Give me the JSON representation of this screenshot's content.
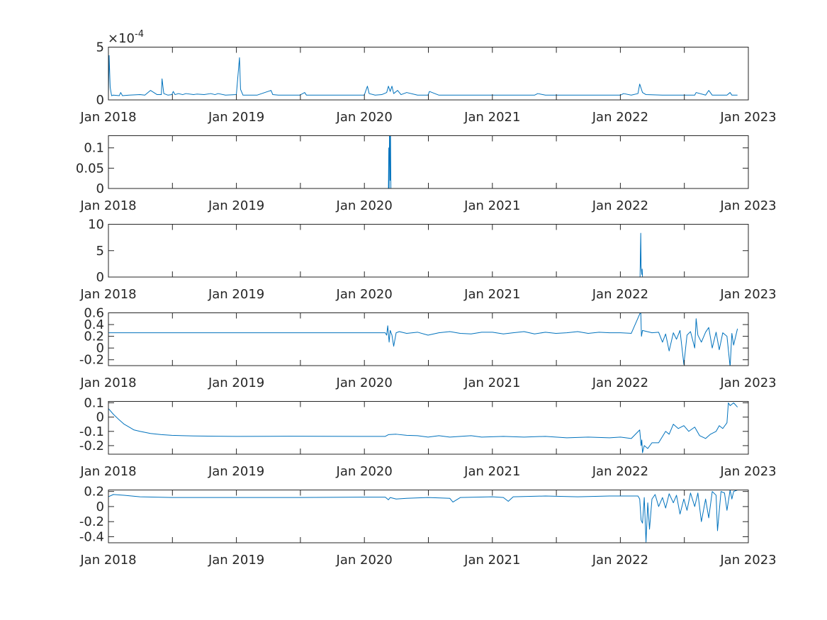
{
  "chart_data": [
    {
      "type": "line",
      "exponent_label": "×10^-4",
      "exponent_base": "×10",
      "exponent_power": "-4",
      "xlim": [
        "2018-01-01",
        "2023-01-01"
      ],
      "ylim": [
        0,
        5
      ],
      "yticks": [
        0,
        5
      ],
      "ytick_labels": [
        "0",
        "5"
      ],
      "xtick_labels": [
        "Jan 2018",
        "Jan 2019",
        "Jan 2020",
        "Jan 2021",
        "Jan 2022",
        "Jan 2023"
      ],
      "series": [
        {
          "color": "#0072BD",
          "x": [
            "2018-01-01",
            "2018-01-03",
            "2018-01-06",
            "2018-01-10",
            "2018-01-15",
            "2018-02-01",
            "2018-02-05",
            "2018-02-10",
            "2018-03-01",
            "2018-04-01",
            "2018-04-15",
            "2018-05-01",
            "2018-05-20",
            "2018-06-01",
            "2018-06-03",
            "2018-06-08",
            "2018-06-20",
            "2018-07-01",
            "2018-07-05",
            "2018-07-10",
            "2018-07-20",
            "2018-08-01",
            "2018-08-10",
            "2018-09-01",
            "2018-09-10",
            "2018-10-01",
            "2018-10-20",
            "2018-11-01",
            "2018-11-10",
            "2018-12-01",
            "2019-01-01",
            "2019-01-10",
            "2019-01-13",
            "2019-01-20",
            "2019-02-01",
            "2019-03-01",
            "2019-04-10",
            "2019-04-15",
            "2019-05-01",
            "2019-06-01",
            "2019-07-01",
            "2019-07-15",
            "2019-07-20",
            "2019-09-01",
            "2019-10-01",
            "2019-11-01",
            "2019-12-01",
            "2020-01-01",
            "2020-01-10",
            "2020-01-15",
            "2020-02-01",
            "2020-02-20",
            "2020-03-05",
            "2020-03-10",
            "2020-03-15",
            "2020-03-20",
            "2020-03-25",
            "2020-04-05",
            "2020-04-15",
            "2020-05-01",
            "2020-06-01",
            "2020-07-01",
            "2020-07-05",
            "2020-08-01",
            "2020-09-01",
            "2020-10-01",
            "2020-11-01",
            "2020-12-01",
            "2021-01-01",
            "2021-02-01",
            "2021-03-01",
            "2021-04-01",
            "2021-05-01",
            "2021-05-10",
            "2021-06-01",
            "2021-08-01",
            "2021-10-01",
            "2021-12-01",
            "2022-01-01",
            "2022-01-10",
            "2022-02-01",
            "2022-02-20",
            "2022-02-25",
            "2022-03-05",
            "2022-03-15",
            "2022-05-01",
            "2022-07-01",
            "2022-08-01",
            "2022-08-05",
            "2022-09-01",
            "2022-09-10",
            "2022-09-20",
            "2022-10-01",
            "2022-10-15",
            "2022-11-01",
            "2022-11-10",
            "2022-11-15",
            "2022-12-01"
          ],
          "y": [
            0.5,
            4.2,
            1.2,
            0.4,
            0.45,
            0.4,
            0.7,
            0.4,
            0.45,
            0.5,
            0.45,
            0.9,
            0.5,
            0.5,
            2.0,
            0.6,
            0.45,
            0.5,
            0.8,
            0.5,
            0.6,
            0.5,
            0.6,
            0.5,
            0.55,
            0.5,
            0.6,
            0.5,
            0.6,
            0.45,
            0.5,
            4.0,
            1.0,
            0.45,
            0.45,
            0.45,
            0.9,
            0.5,
            0.45,
            0.45,
            0.45,
            0.7,
            0.45,
            0.45,
            0.45,
            0.45,
            0.45,
            0.45,
            1.3,
            0.6,
            0.45,
            0.5,
            0.7,
            1.3,
            0.8,
            1.3,
            0.6,
            0.9,
            0.5,
            0.7,
            0.45,
            0.45,
            0.8,
            0.45,
            0.45,
            0.45,
            0.45,
            0.45,
            0.45,
            0.45,
            0.45,
            0.45,
            0.45,
            0.6,
            0.45,
            0.45,
            0.45,
            0.45,
            0.45,
            0.6,
            0.45,
            0.6,
            1.5,
            0.7,
            0.5,
            0.45,
            0.45,
            0.45,
            0.7,
            0.45,
            0.9,
            0.45,
            0.45,
            0.45,
            0.45,
            0.7,
            0.45,
            0.45
          ]
        }
      ]
    },
    {
      "type": "line",
      "xlim": [
        "2018-01-01",
        "2023-01-01"
      ],
      "ylim": [
        0,
        0.13
      ],
      "yticks": [
        0,
        0.05,
        0.1
      ],
      "ytick_labels": [
        "0",
        "0.05",
        "0.1"
      ],
      "xtick_labels": [
        "Jan 2018",
        "Jan 2019",
        "Jan 2020",
        "Jan 2021",
        "Jan 2022",
        "Jan 2023"
      ],
      "series": [
        {
          "color": "#0072BD",
          "x": [
            "2018-01-01",
            "2020-03-10",
            "2020-03-11",
            "2020-03-12",
            "2020-03-13",
            "2020-03-14",
            "2020-03-15",
            "2020-03-16",
            "2020-03-17",
            "2022-12-01"
          ],
          "y": [
            0,
            0,
            0.1,
            0,
            0.13,
            0.13,
            0.02,
            0.13,
            0,
            0
          ]
        }
      ]
    },
    {
      "type": "line",
      "xlim": [
        "2018-01-01",
        "2023-01-01"
      ],
      "ylim": [
        0,
        10
      ],
      "yticks": [
        0,
        5,
        10
      ],
      "ytick_labels": [
        "0",
        "5",
        "10"
      ],
      "xtick_labels": [
        "Jan 2018",
        "Jan 2019",
        "Jan 2020",
        "Jan 2021",
        "Jan 2022",
        "Jan 2023"
      ],
      "series": [
        {
          "color": "#0072BD",
          "x": [
            "2018-01-01",
            "2022-02-26",
            "2022-02-28",
            "2022-03-01",
            "2022-03-03",
            "2022-03-04",
            "2022-03-05",
            "2022-12-01"
          ],
          "y": [
            0,
            0,
            8.3,
            2.0,
            0.5,
            1.5,
            0,
            0
          ]
        }
      ]
    },
    {
      "type": "line",
      "xlim": [
        "2018-01-01",
        "2023-01-01"
      ],
      "ylim": [
        -0.3,
        0.6
      ],
      "yticks": [
        -0.2,
        0,
        0.2,
        0.4,
        0.6
      ],
      "ytick_labels": [
        "-0.2",
        "0",
        "0.2",
        "0.4",
        "0.6"
      ],
      "xtick_labels": [
        "Jan 2018",
        "Jan 2019",
        "Jan 2020",
        "Jan 2021",
        "Jan 2022",
        "Jan 2023"
      ],
      "series": [
        {
          "color": "#0072BD",
          "x": [
            "2018-01-01",
            "2020-03-01",
            "2020-03-05",
            "2020-03-08",
            "2020-03-12",
            "2020-03-15",
            "2020-03-20",
            "2020-03-25",
            "2020-04-01",
            "2020-04-10",
            "2020-05-01",
            "2020-06-01",
            "2020-07-01",
            "2020-08-01",
            "2020-09-01",
            "2020-10-01",
            "2020-11-01",
            "2020-12-01",
            "2021-01-01",
            "2021-02-01",
            "2021-03-01",
            "2021-04-01",
            "2021-05-01",
            "2021-06-01",
            "2021-07-01",
            "2021-08-01",
            "2021-09-01",
            "2021-10-01",
            "2021-11-01",
            "2021-12-01",
            "2022-01-01",
            "2022-02-01",
            "2022-02-28",
            "2022-03-02",
            "2022-03-05",
            "2022-04-01",
            "2022-04-20",
            "2022-05-01",
            "2022-05-10",
            "2022-05-20",
            "2022-06-01",
            "2022-06-10",
            "2022-06-20",
            "2022-07-01",
            "2022-07-10",
            "2022-07-20",
            "2022-08-01",
            "2022-08-05",
            "2022-08-10",
            "2022-08-20",
            "2022-09-01",
            "2022-09-10",
            "2022-09-20",
            "2022-10-01",
            "2022-10-10",
            "2022-10-20",
            "2022-11-01",
            "2022-11-10",
            "2022-11-15",
            "2022-11-20",
            "2022-12-01"
          ],
          "y": [
            0.26,
            0.26,
            0.22,
            0.38,
            0.1,
            0.3,
            0.22,
            0.03,
            0.26,
            0.28,
            0.25,
            0.27,
            0.22,
            0.26,
            0.28,
            0.25,
            0.24,
            0.27,
            0.27,
            0.24,
            0.26,
            0.28,
            0.24,
            0.27,
            0.25,
            0.26,
            0.28,
            0.25,
            0.27,
            0.26,
            0.26,
            0.25,
            0.62,
            0.2,
            0.3,
            0.26,
            0.27,
            0.1,
            0.24,
            -0.05,
            0.26,
            0.15,
            0.3,
            -0.28,
            0.22,
            0.28,
            0.0,
            0.5,
            0.22,
            0.1,
            0.27,
            0.35,
            0.0,
            0.27,
            -0.03,
            0.26,
            0.2,
            -0.32,
            0.25,
            0.05,
            0.33
          ]
        }
      ]
    },
    {
      "type": "line",
      "xlim": [
        "2018-01-01",
        "2023-01-01"
      ],
      "ylim": [
        -0.26,
        0.11
      ],
      "yticks": [
        -0.2,
        -0.1,
        0,
        0.1
      ],
      "ytick_labels": [
        "-0.2",
        "-0.1",
        "0",
        "0.1"
      ],
      "xtick_labels": [
        "Jan 2018",
        "Jan 2019",
        "Jan 2020",
        "Jan 2021",
        "Jan 2022",
        "Jan 2023"
      ],
      "series": [
        {
          "color": "#0072BD",
          "x": [
            "2018-01-01",
            "2018-01-15",
            "2018-02-01",
            "2018-02-15",
            "2018-03-01",
            "2018-03-15",
            "2018-04-01",
            "2018-05-01",
            "2018-06-01",
            "2018-07-01",
            "2018-09-01",
            "2018-11-01",
            "2019-01-01",
            "2019-06-01",
            "2020-01-01",
            "2020-03-01",
            "2020-03-10",
            "2020-04-01",
            "2020-05-01",
            "2020-06-01",
            "2020-07-01",
            "2020-08-01",
            "2020-09-01",
            "2020-10-01",
            "2020-11-01",
            "2020-12-01",
            "2021-02-01",
            "2021-04-01",
            "2021-06-01",
            "2021-08-01",
            "2021-10-01",
            "2021-12-01",
            "2022-01-01",
            "2022-02-01",
            "2022-02-25",
            "2022-03-01",
            "2022-03-03",
            "2022-03-05",
            "2022-03-10",
            "2022-03-20",
            "2022-04-01",
            "2022-04-20",
            "2022-05-10",
            "2022-05-20",
            "2022-06-01",
            "2022-06-15",
            "2022-07-01",
            "2022-07-15",
            "2022-08-01",
            "2022-08-15",
            "2022-09-01",
            "2022-09-15",
            "2022-10-01",
            "2022-10-10",
            "2022-10-20",
            "2022-11-01",
            "2022-11-05",
            "2022-11-10",
            "2022-11-20",
            "2022-12-01"
          ],
          "y": [
            0.06,
            0.02,
            -0.02,
            -0.05,
            -0.07,
            -0.09,
            -0.1,
            -0.115,
            -0.123,
            -0.128,
            -0.132,
            -0.134,
            -0.135,
            -0.134,
            -0.135,
            -0.135,
            -0.123,
            -0.12,
            -0.128,
            -0.13,
            -0.14,
            -0.13,
            -0.14,
            -0.135,
            -0.13,
            -0.14,
            -0.135,
            -0.14,
            -0.135,
            -0.145,
            -0.14,
            -0.145,
            -0.14,
            -0.15,
            -0.09,
            -0.2,
            -0.16,
            -0.25,
            -0.2,
            -0.22,
            -0.18,
            -0.18,
            -0.1,
            -0.12,
            -0.05,
            -0.08,
            -0.06,
            -0.1,
            -0.07,
            -0.13,
            -0.15,
            -0.12,
            -0.1,
            -0.06,
            -0.08,
            -0.04,
            0.1,
            0.08,
            0.1,
            0.07
          ]
        }
      ]
    },
    {
      "type": "line",
      "xlim": [
        "2018-01-01",
        "2023-01-01"
      ],
      "ylim": [
        -0.48,
        0.22
      ],
      "yticks": [
        -0.4,
        -0.2,
        0,
        0.2
      ],
      "ytick_labels": [
        "-0.4",
        "-0.2",
        "0",
        "0.2"
      ],
      "xtick_labels": [
        "Jan 2018",
        "Jan 2019",
        "Jan 2020",
        "Jan 2021",
        "Jan 2022",
        "Jan 2023"
      ],
      "series": [
        {
          "color": "#0072BD",
          "x": [
            "2018-01-01",
            "2018-01-15",
            "2018-02-15",
            "2018-04-01",
            "2018-07-01",
            "2019-01-01",
            "2019-07-01",
            "2020-01-01",
            "2020-03-01",
            "2020-03-10",
            "2020-03-15",
            "2020-04-01",
            "2020-05-01",
            "2020-07-01",
            "2020-09-01",
            "2020-09-10",
            "2020-10-01",
            "2021-01-01",
            "2021-02-01",
            "2021-02-15",
            "2021-03-01",
            "2021-06-01",
            "2021-09-01",
            "2021-12-01",
            "2022-01-01",
            "2022-02-20",
            "2022-02-25",
            "2022-03-01",
            "2022-03-05",
            "2022-03-10",
            "2022-03-15",
            "2022-03-20",
            "2022-03-25",
            "2022-04-01",
            "2022-04-10",
            "2022-04-20",
            "2022-05-01",
            "2022-05-10",
            "2022-05-20",
            "2022-06-01",
            "2022-06-10",
            "2022-06-20",
            "2022-07-01",
            "2022-07-10",
            "2022-07-20",
            "2022-08-01",
            "2022-08-10",
            "2022-08-20",
            "2022-09-01",
            "2022-09-10",
            "2022-09-20",
            "2022-10-01",
            "2022-10-05",
            "2022-10-15",
            "2022-10-25",
            "2022-11-01",
            "2022-11-10",
            "2022-11-15",
            "2022-11-20",
            "2022-12-01"
          ],
          "y": [
            0.13,
            0.16,
            0.15,
            0.13,
            0.12,
            0.12,
            0.12,
            0.125,
            0.125,
            0.09,
            0.12,
            0.1,
            0.11,
            0.12,
            0.11,
            0.06,
            0.12,
            0.13,
            0.12,
            0.07,
            0.13,
            0.14,
            0.13,
            0.14,
            0.14,
            0.14,
            0.1,
            -0.18,
            -0.22,
            0.12,
            -0.47,
            0.05,
            -0.3,
            0.1,
            0.16,
            0.0,
            0.12,
            -0.02,
            0.17,
            0.05,
            0.15,
            -0.1,
            0.1,
            -0.05,
            0.18,
            0.0,
            0.18,
            -0.2,
            0.1,
            -0.15,
            0.2,
            0.15,
            -0.32,
            0.2,
            0.18,
            -0.05,
            0.22,
            0.1,
            0.2,
            0.22
          ]
        }
      ]
    }
  ]
}
